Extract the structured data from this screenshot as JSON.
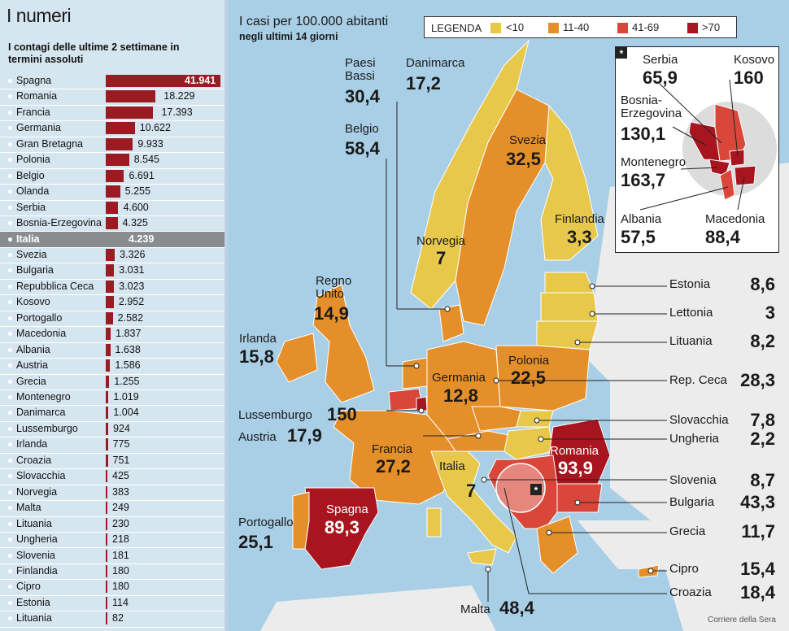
{
  "left_panel": {
    "title": "I numeri",
    "subtitle": "I contagi delle ultime 2 settimane in termini assoluti",
    "max_value": 41941,
    "highlight": "Italia",
    "rows": [
      {
        "name": "Spagna",
        "value": 41941,
        "label": "41.941"
      },
      {
        "name": "Romania",
        "value": 18229,
        "label": "18.229"
      },
      {
        "name": "Francia",
        "value": 17393,
        "label": "17.393"
      },
      {
        "name": "Germania",
        "value": 10622,
        "label": "10.622"
      },
      {
        "name": "Gran Bretagna",
        "value": 9933,
        "label": "9.933"
      },
      {
        "name": "Polonia",
        "value": 8545,
        "label": "8.545"
      },
      {
        "name": "Belgio",
        "value": 6691,
        "label": "6.691"
      },
      {
        "name": "Olanda",
        "value": 5255,
        "label": "5.255"
      },
      {
        "name": "Serbia",
        "value": 4600,
        "label": "4.600"
      },
      {
        "name": "Bosnia-Erzegovina",
        "value": 4325,
        "label": "4.325"
      },
      {
        "name": "Italia",
        "value": 4239,
        "label": "4.239"
      },
      {
        "name": "Svezia",
        "value": 3326,
        "label": "3.326"
      },
      {
        "name": "Bulgaria",
        "value": 3031,
        "label": "3.031"
      },
      {
        "name": "Repubblica Ceca",
        "value": 3023,
        "label": "3.023"
      },
      {
        "name": "Kosovo",
        "value": 2952,
        "label": "2.952"
      },
      {
        "name": "Portogallo",
        "value": 2582,
        "label": "2.582"
      },
      {
        "name": "Macedonia",
        "value": 1837,
        "label": "1.837"
      },
      {
        "name": "Albania",
        "value": 1638,
        "label": "1.638"
      },
      {
        "name": "Austria",
        "value": 1586,
        "label": "1.586"
      },
      {
        "name": "Grecia",
        "value": 1255,
        "label": "1.255"
      },
      {
        "name": "Montenegro",
        "value": 1019,
        "label": "1.019"
      },
      {
        "name": "Danimarca",
        "value": 1004,
        "label": "1.004"
      },
      {
        "name": "Lussemburgo",
        "value": 924,
        "label": "924"
      },
      {
        "name": "Irlanda",
        "value": 775,
        "label": "775"
      },
      {
        "name": "Croazia",
        "value": 751,
        "label": "751"
      },
      {
        "name": "Slovacchia",
        "value": 425,
        "label": "425"
      },
      {
        "name": "Norvegia",
        "value": 383,
        "label": "383"
      },
      {
        "name": "Malta",
        "value": 249,
        "label": "249"
      },
      {
        "name": "Lituania",
        "value": 230,
        "label": "230"
      },
      {
        "name": "Ungheria",
        "value": 218,
        "label": "218"
      },
      {
        "name": "Slovenia",
        "value": 181,
        "label": "181"
      },
      {
        "name": "Finlandia",
        "value": 180,
        "label": "180"
      },
      {
        "name": "Cipro",
        "value": 180,
        "label": "180"
      },
      {
        "name": "Estonia",
        "value": 114,
        "label": "114"
      },
      {
        "name": "Lituania",
        "value": 82,
        "label": "82"
      }
    ]
  },
  "map": {
    "title": "I casi per 100.000 abitanti",
    "subtitle": "negli ultimi 14 giorni",
    "legend": {
      "title": "LEGENDA",
      "items": [
        {
          "label": "<10",
          "color": "#e8c84a"
        },
        {
          "label": "11-40",
          "color": "#e58f2a"
        },
        {
          "label": "41-69",
          "color": "#d9473a"
        },
        {
          "label": ">70",
          "color": "#a8151f"
        }
      ]
    },
    "countries": {
      "paesi_bassi": {
        "name": "Paesi\nBassi",
        "value": "30,4"
      },
      "danimarca": {
        "name": "Danimarca",
        "value": "17,2"
      },
      "belgio": {
        "name": "Belgio",
        "value": "58,4"
      },
      "svezia": {
        "name": "Svezia",
        "value": "32,5"
      },
      "finlandia": {
        "name": "Finlandia",
        "value": "3,3"
      },
      "norvegia": {
        "name": "Norvegia",
        "value": "7"
      },
      "regno_unito": {
        "name": "Regno\nUnito",
        "value": "14,9"
      },
      "irlanda": {
        "name": "Irlanda",
        "value": "15,8"
      },
      "germania": {
        "name": "Germania",
        "value": "12,8"
      },
      "polonia": {
        "name": "Polonia",
        "value": "22,5"
      },
      "lussemburgo": {
        "name": "Lussemburgo",
        "value": "150"
      },
      "austria": {
        "name": "Austria",
        "value": "17,9"
      },
      "francia": {
        "name": "Francia",
        "value": "27,2"
      },
      "italia": {
        "name": "Italia",
        "value": "7"
      },
      "romania": {
        "name": "Romania",
        "value": "93,9"
      },
      "spagna": {
        "name": "Spagna",
        "value": "89,3"
      },
      "portogallo": {
        "name": "Portogallo",
        "value": "25,1"
      },
      "malta": {
        "name": "Malta",
        "value": "48,4"
      }
    },
    "right_list": [
      {
        "name": "Estonia",
        "value": "8,6"
      },
      {
        "name": "Lettonia",
        "value": "3"
      },
      {
        "name": "Lituania",
        "value": "8,2"
      },
      {
        "name": "Rep. Ceca",
        "value": "28,3"
      },
      {
        "name": "Slovacchia",
        "value": "7,8"
      },
      {
        "name": "Ungheria",
        "value": "2,2"
      },
      {
        "name": "Slovenia",
        "value": "8,7"
      },
      {
        "name": "Bulgaria",
        "value": "43,3"
      },
      {
        "name": "Grecia",
        "value": "11,7"
      },
      {
        "name": "Cipro",
        "value": "15,4"
      },
      {
        "name": "Croazia",
        "value": "18,4"
      }
    ],
    "inset": {
      "marker": "*",
      "serbia": {
        "name": "Serbia",
        "value": "65,9"
      },
      "kosovo": {
        "name": "Kosovo",
        "value": "160"
      },
      "bosnia": {
        "name": "Bosnia-\nErzegovina",
        "value": "130,1"
      },
      "montenegro": {
        "name": "Montenegro",
        "value": "163,7"
      },
      "albania": {
        "name": "Albania",
        "value": "57,5"
      },
      "macedonia": {
        "name": "Macedonia",
        "value": "88,4"
      }
    },
    "credit": "Corriere della Sera"
  },
  "colors": {
    "sea": "#a9cfe6",
    "land_other": "#ececec",
    "yellow": "#e8c84a",
    "orange": "#e58f2a",
    "red": "#d9473a",
    "darkred": "#a8151f",
    "panel": "#d6e6f0"
  }
}
